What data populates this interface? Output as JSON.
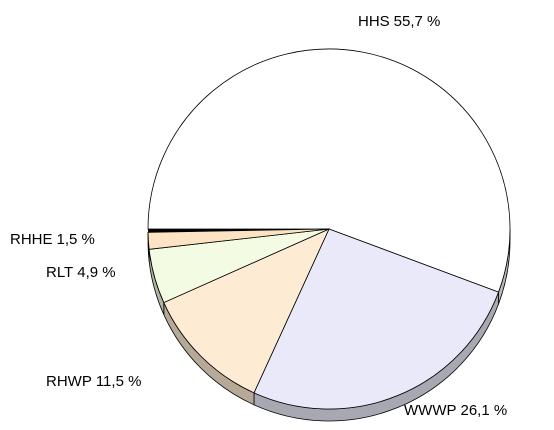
{
  "chart_data": {
    "type": "pie",
    "categories": [
      "HHS",
      "WWWP",
      "RHWP",
      "RLT",
      "RHHE"
    ],
    "values": [
      55.7,
      26.1,
      11.5,
      4.9,
      1.5
    ],
    "value_labels": [
      "55,7 %",
      "26,1 %",
      "11,5 %",
      "4,9 %",
      "1,5 %"
    ],
    "colors": [
      "#ffffff",
      "#e9e9f9",
      "#fdebd3",
      "#f3fbe2",
      "#fbe3c3"
    ]
  }
}
